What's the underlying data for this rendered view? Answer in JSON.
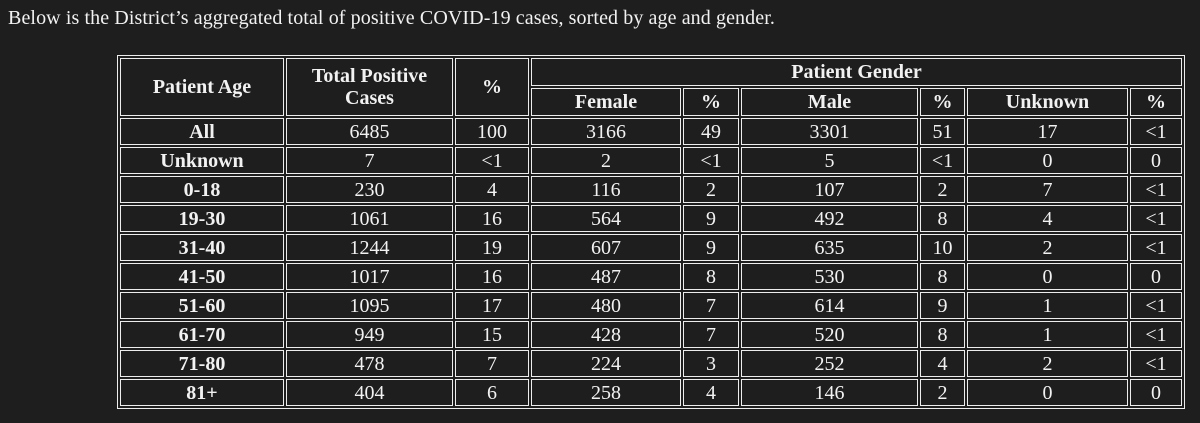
{
  "colors": {
    "background": "#1e1e1e",
    "text": "#f2f2f2",
    "table_border": "#ededed"
  },
  "page": {
    "title": "Below is the District’s aggregated total of positive COVID-19 cases, sorted by age and gender."
  },
  "table": {
    "headers": {
      "patient_age": "Patient Age",
      "total_positive_cases": "Total Positive Cases",
      "total_percent": "%",
      "patient_gender": "Patient Gender",
      "female": "Female",
      "female_percent": "%",
      "male": "Male",
      "male_percent": "%",
      "unknown": "Unknown",
      "unknown_percent": "%"
    },
    "rows": [
      [
        "All",
        "6485",
        "100",
        "3166",
        "49",
        "3301",
        "51",
        "17",
        "<1"
      ],
      [
        "Unknown",
        "7",
        "<1",
        "2",
        "<1",
        "5",
        "<1",
        "0",
        "0"
      ],
      [
        "0-18",
        "230",
        "4",
        "116",
        "2",
        "107",
        "2",
        "7",
        "<1"
      ],
      [
        "19-30",
        "1061",
        "16",
        "564",
        "9",
        "492",
        "8",
        "4",
        "<1"
      ],
      [
        "31-40",
        "1244",
        "19",
        "607",
        "9",
        "635",
        "10",
        "2",
        "<1"
      ],
      [
        "41-50",
        "1017",
        "16",
        "487",
        "8",
        "530",
        "8",
        "0",
        "0"
      ],
      [
        "51-60",
        "1095",
        "17",
        "480",
        "7",
        "614",
        "9",
        "1",
        "<1"
      ],
      [
        "61-70",
        "949",
        "15",
        "428",
        "7",
        "520",
        "8",
        "1",
        "<1"
      ],
      [
        "71-80",
        "478",
        "7",
        "224",
        "3",
        "252",
        "4",
        "2",
        "<1"
      ],
      [
        "81+",
        "404",
        "6",
        "258",
        "4",
        "146",
        "2",
        "0",
        "0"
      ]
    ]
  }
}
